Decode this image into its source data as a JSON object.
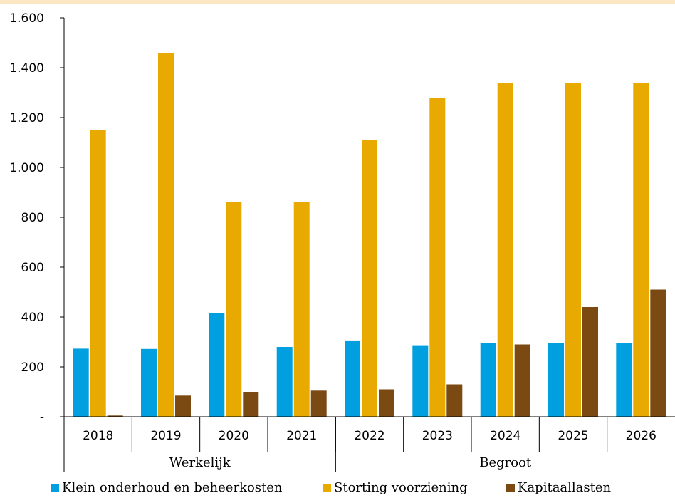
{
  "chart_data": {
    "type": "bar",
    "categories": [
      "2018",
      "2019",
      "2020",
      "2021",
      "2022",
      "2023",
      "2024",
      "2025",
      "2026"
    ],
    "groups": [
      {
        "label": "Werkelijk",
        "categories": [
          "2018",
          "2019",
          "2020",
          "2021"
        ]
      },
      {
        "label": "Begroot",
        "categories": [
          "2022",
          "2023",
          "2024",
          "2025",
          "2026"
        ]
      }
    ],
    "series": [
      {
        "name": "Klein onderhoud en beheerkosten",
        "color": "#009fdf",
        "values": [
          273,
          272,
          417,
          280,
          306,
          287,
          297,
          297,
          297
        ]
      },
      {
        "name": "Storting voorziening",
        "color": "#e8aa00",
        "values": [
          1150,
          1460,
          860,
          860,
          1110,
          1280,
          1340,
          1340,
          1340
        ]
      },
      {
        "name": "Kapitaallasten",
        "color": "#7b4a12",
        "values": [
          5,
          85,
          100,
          105,
          110,
          130,
          290,
          440,
          510
        ]
      }
    ],
    "yticks": [
      "-",
      "200",
      "400",
      "600",
      "800",
      "1.000",
      "1.200",
      "1.400",
      "1.600"
    ],
    "ylim": [
      0,
      1600
    ],
    "legend_position": "bottom",
    "grid": false
  }
}
